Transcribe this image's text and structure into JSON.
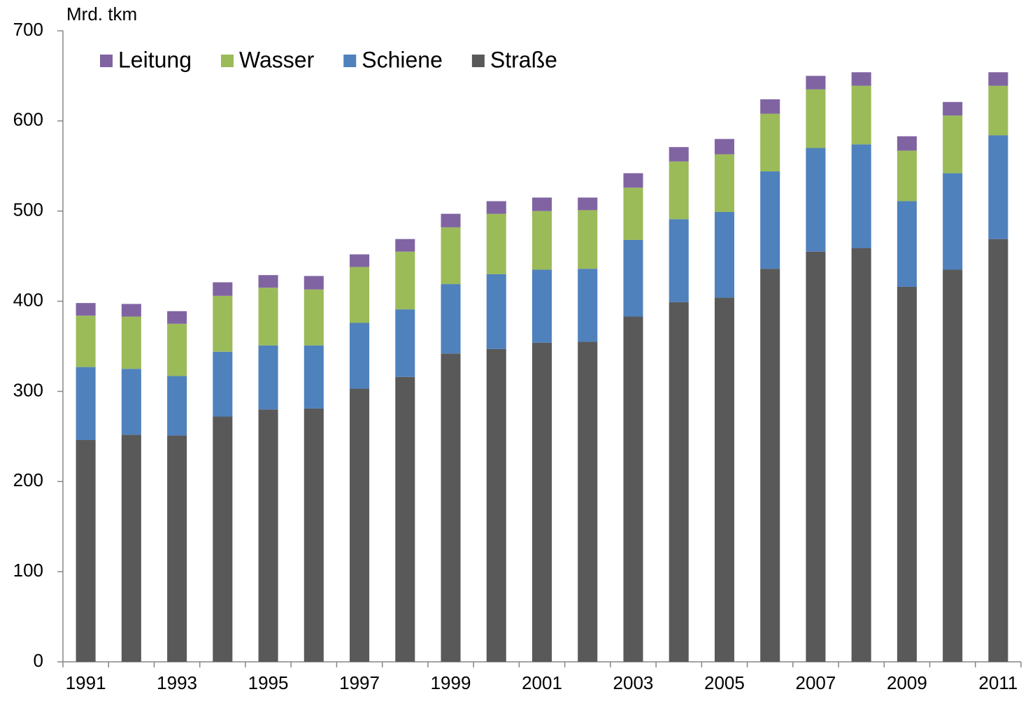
{
  "chart_data": {
    "type": "stacked_bar",
    "y_label": "Mrd. tkm",
    "categories": [
      "1991",
      null,
      "1993",
      null,
      "1995",
      null,
      "1997",
      null,
      "1999",
      null,
      "2001",
      null,
      "2003",
      null,
      "2005",
      null,
      "2007",
      null,
      "2009",
      null,
      "2011"
    ],
    "series": [
      {
        "name": "Leitung",
        "color": "#8064a2",
        "values": [
          14,
          14,
          14,
          15,
          14,
          15,
          14,
          14,
          15,
          14,
          15,
          14,
          16,
          16,
          17,
          16,
          15,
          15,
          16,
          15,
          15
        ]
      },
      {
        "name": "Wasser",
        "color": "#9bbb59",
        "values": [
          57,
          58,
          58,
          62,
          64,
          62,
          62,
          64,
          63,
          67,
          65,
          65,
          58,
          64,
          64,
          64,
          65,
          65,
          56,
          64,
          55
        ]
      },
      {
        "name": "Schiene",
        "color": "#4f81bd",
        "values": [
          81,
          73,
          66,
          72,
          71,
          70,
          73,
          75,
          77,
          83,
          81,
          81,
          85,
          92,
          95,
          108,
          115,
          115,
          95,
          107,
          115
        ]
      },
      {
        "name": "Straße",
        "color": "#595959",
        "values": [
          246,
          252,
          251,
          272,
          280,
          281,
          303,
          316,
          342,
          347,
          354,
          355,
          383,
          399,
          404,
          436,
          455,
          459,
          416,
          435,
          469
        ]
      }
    ],
    "ylim": [
      0,
      700
    ],
    "yticks": [
      0,
      100,
      200,
      300,
      400,
      500,
      600,
      700
    ],
    "legend": "top-left"
  }
}
